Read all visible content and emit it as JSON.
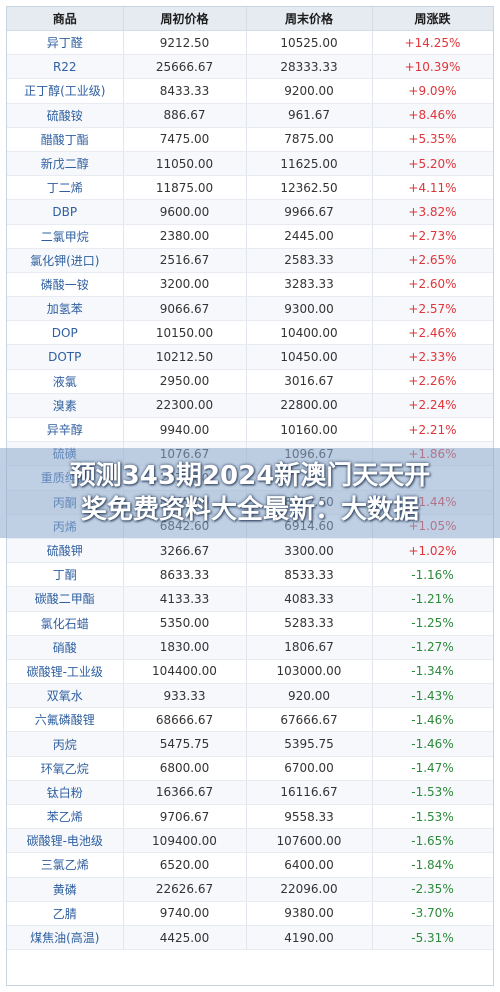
{
  "table": {
    "headers": [
      "商品",
      "周初价格",
      "周末价格",
      "周涨跌"
    ],
    "rows": [
      {
        "name": "异丁醛",
        "start": "9212.50",
        "end": "10525.00",
        "change": "+14.25%",
        "dir": "up"
      },
      {
        "name": "R22",
        "start": "25666.67",
        "end": "28333.33",
        "change": "+10.39%",
        "dir": "up"
      },
      {
        "name": "正丁醇(工业级)",
        "start": "8433.33",
        "end": "9200.00",
        "change": "+9.09%",
        "dir": "up"
      },
      {
        "name": "硫酸铵",
        "start": "886.67",
        "end": "961.67",
        "change": "+8.46%",
        "dir": "up"
      },
      {
        "name": "醋酸丁酯",
        "start": "7475.00",
        "end": "7875.00",
        "change": "+5.35%",
        "dir": "up"
      },
      {
        "name": "新戊二醇",
        "start": "11050.00",
        "end": "11625.00",
        "change": "+5.20%",
        "dir": "up"
      },
      {
        "name": "丁二烯",
        "start": "11875.00",
        "end": "12362.50",
        "change": "+4.11%",
        "dir": "up"
      },
      {
        "name": "DBP",
        "start": "9600.00",
        "end": "9966.67",
        "change": "+3.82%",
        "dir": "up"
      },
      {
        "name": "二氯甲烷",
        "start": "2380.00",
        "end": "2445.00",
        "change": "+2.73%",
        "dir": "up"
      },
      {
        "name": "氯化钾(进口)",
        "start": "2516.67",
        "end": "2583.33",
        "change": "+2.65%",
        "dir": "up"
      },
      {
        "name": "磷酸一铵",
        "start": "3200.00",
        "end": "3283.33",
        "change": "+2.60%",
        "dir": "up"
      },
      {
        "name": "加氢苯",
        "start": "9066.67",
        "end": "9300.00",
        "change": "+2.57%",
        "dir": "up"
      },
      {
        "name": "DOP",
        "start": "10150.00",
        "end": "10400.00",
        "change": "+2.46%",
        "dir": "up"
      },
      {
        "name": "DOTP",
        "start": "10212.50",
        "end": "10450.00",
        "change": "+2.33%",
        "dir": "up"
      },
      {
        "name": "液氯",
        "start": "2950.00",
        "end": "3016.67",
        "change": "+2.26%",
        "dir": "up"
      },
      {
        "name": "溴素",
        "start": "22300.00",
        "end": "22800.00",
        "change": "+2.24%",
        "dir": "up"
      },
      {
        "name": "异辛醇",
        "start": "9940.00",
        "end": "10160.00",
        "change": "+2.21%",
        "dir": "up"
      },
      {
        "name": "硫磺",
        "start": "1076.67",
        "end": "1096.67",
        "change": "+1.86%",
        "dir": "up"
      },
      {
        "name": "重质纯碱",
        "start": "2270.00",
        "end": "",
        "change": "",
        "dir": "up"
      },
      {
        "name": "丙酮",
        "start": "8145.00",
        "end": "8262.50",
        "change": "+1.44%",
        "dir": "up"
      },
      {
        "name": "丙烯",
        "start": "6842.60",
        "end": "6914.60",
        "change": "+1.05%",
        "dir": "up"
      },
      {
        "name": "硫酸钾",
        "start": "3266.67",
        "end": "3300.00",
        "change": "+1.02%",
        "dir": "up"
      },
      {
        "name": "丁酮",
        "start": "8633.33",
        "end": "8533.33",
        "change": "-1.16%",
        "dir": "down"
      },
      {
        "name": "碳酸二甲酯",
        "start": "4133.33",
        "end": "4083.33",
        "change": "-1.21%",
        "dir": "down"
      },
      {
        "name": "氯化石蜡",
        "start": "5350.00",
        "end": "5283.33",
        "change": "-1.25%",
        "dir": "down"
      },
      {
        "name": "硝酸",
        "start": "1830.00",
        "end": "1806.67",
        "change": "-1.27%",
        "dir": "down"
      },
      {
        "name": "碳酸锂-工业级",
        "start": "104400.00",
        "end": "103000.00",
        "change": "-1.34%",
        "dir": "down"
      },
      {
        "name": "双氧水",
        "start": "933.33",
        "end": "920.00",
        "change": "-1.43%",
        "dir": "down"
      },
      {
        "name": "六氟磷酸锂",
        "start": "68666.67",
        "end": "67666.67",
        "change": "-1.46%",
        "dir": "down"
      },
      {
        "name": "丙烷",
        "start": "5475.75",
        "end": "5395.75",
        "change": "-1.46%",
        "dir": "down"
      },
      {
        "name": "环氧乙烷",
        "start": "6800.00",
        "end": "6700.00",
        "change": "-1.47%",
        "dir": "down"
      },
      {
        "name": "钛白粉",
        "start": "16366.67",
        "end": "16116.67",
        "change": "-1.53%",
        "dir": "down"
      },
      {
        "name": "苯乙烯",
        "start": "9706.67",
        "end": "9558.33",
        "change": "-1.53%",
        "dir": "down"
      },
      {
        "name": "碳酸锂-电池级",
        "start": "109400.00",
        "end": "107600.00",
        "change": "-1.65%",
        "dir": "down"
      },
      {
        "name": "三氯乙烯",
        "start": "6520.00",
        "end": "6400.00",
        "change": "-1.84%",
        "dir": "down"
      },
      {
        "name": "黄磷",
        "start": "22626.67",
        "end": "22096.00",
        "change": "-2.35%",
        "dir": "down"
      },
      {
        "name": "乙腈",
        "start": "9740.00",
        "end": "9380.00",
        "change": "-3.70%",
        "dir": "down"
      },
      {
        "name": "煤焦油(高温)",
        "start": "4425.00",
        "end": "4190.00",
        "change": "-5.31%",
        "dir": "down"
      }
    ]
  },
  "overlay": {
    "line1": "预测343期2024新澳门天天开",
    "line2": "奖免费资料大全最新：大数据"
  },
  "colors": {
    "up": "#e0353a",
    "down": "#2c8a3a",
    "name": "#2f5fa0",
    "header_bg": "#e6ebf2"
  }
}
